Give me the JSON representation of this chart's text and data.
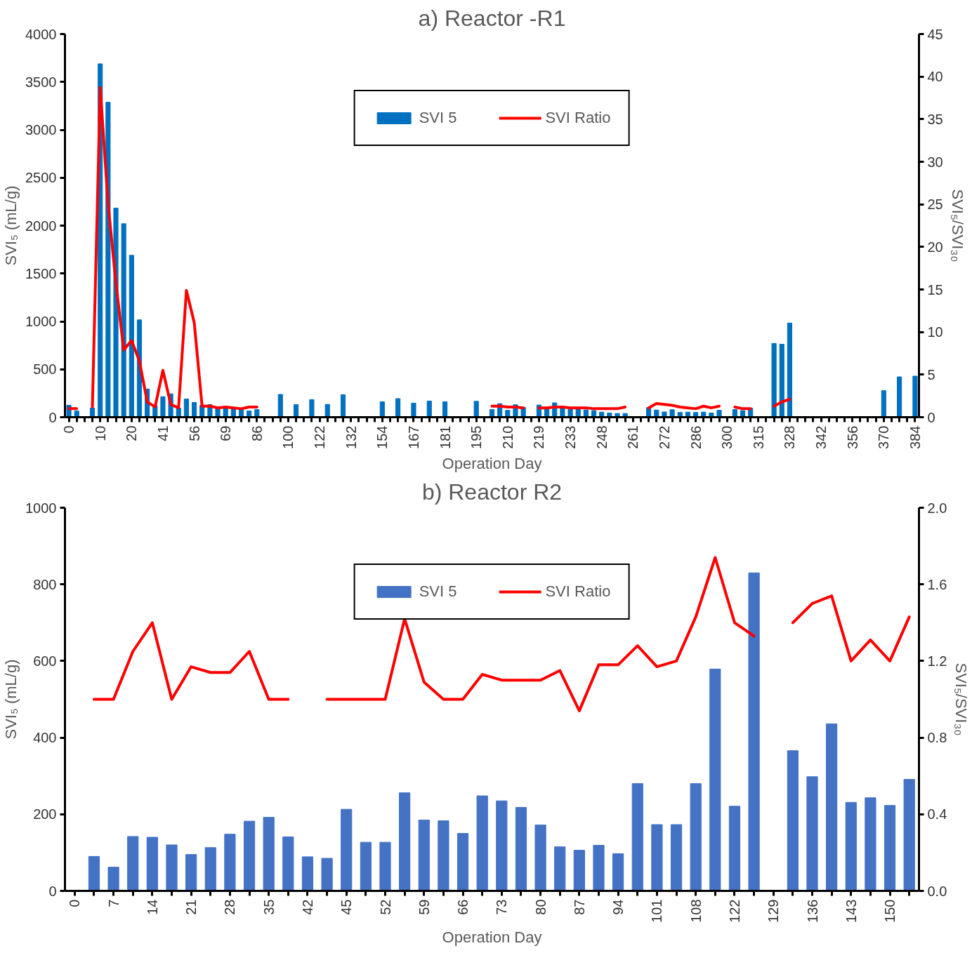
{
  "chart_data": [
    {
      "type": "bar",
      "title": "a) Reactor -R1",
      "xlabel": "Operation Day",
      "ylabel": "SVI₅ (mL/g)",
      "y2label": "SVI₅/SVI₃₀",
      "categories": [
        "0",
        null,
        null,
        null,
        "10",
        null,
        null,
        null,
        "20",
        null,
        null,
        null,
        "41",
        null,
        null,
        null,
        "56",
        null,
        null,
        null,
        "69",
        null,
        null,
        null,
        "86",
        null,
        null,
        null,
        "100",
        null,
        null,
        null,
        "122",
        null,
        null,
        null,
        "132",
        null,
        null,
        null,
        "154",
        null,
        null,
        null,
        "167",
        null,
        null,
        null,
        "181",
        null,
        null,
        null,
        "195",
        null,
        null,
        null,
        "210",
        null,
        null,
        null,
        "219",
        null,
        null,
        null,
        "233",
        null,
        null,
        null,
        "248",
        null,
        null,
        null,
        "261",
        null,
        null,
        null,
        "272",
        null,
        null,
        null,
        "286",
        null,
        null,
        null,
        "300",
        null,
        null,
        null,
        "315",
        null,
        null,
        null,
        "328",
        null,
        null,
        null,
        "342",
        null,
        null,
        null,
        "356",
        null,
        null,
        null,
        "370",
        null,
        null,
        null,
        "384"
      ],
      "series": [
        {
          "name": "SVI 5",
          "color": "#0070c0",
          "values": [
            125,
            65,
            null,
            95,
            3689,
            3288,
            2183,
            2020,
            1690,
            1016,
            294,
            120,
            214,
            244,
            95,
            190,
            154,
            125,
            131,
            101,
            95,
            80,
            80,
            65,
            80,
            null,
            null,
            238,
            null,
            131,
            null,
            184,
            null,
            134,
            null,
            235,
            null,
            null,
            null,
            null,
            161,
            null,
            194,
            null,
            147,
            null,
            169,
            null,
            161,
            null,
            null,
            null,
            166,
            null,
            80,
            141,
            72,
            130,
            102,
            null,
            127,
            91,
            150,
            97,
            83,
            97,
            75,
            69,
            53,
            44,
            39,
            39,
            null,
            null,
            100,
            75,
            55,
            78,
            50,
            53,
            50,
            53,
            44,
            72,
            null,
            80,
            69,
            94,
            null,
            null,
            770,
            762,
            983,
            null,
            null,
            null,
            null,
            null,
            null,
            null,
            null,
            null,
            null,
            null,
            277,
            null,
            421,
            null,
            429
          ]
        },
        {
          "name": "SVI Ratio",
          "type": "line",
          "axis": "y2",
          "color": "#ff0000",
          "values": [
            1.0,
            1.0,
            null,
            1.2,
            38.7,
            25.1,
            15.8,
            7.9,
            9.0,
            6.6,
            1.8,
            1.2,
            5.5,
            1.5,
            1.1,
            14.9,
            11.1,
            1.3,
            1.3,
            1.1,
            1.2,
            1.1,
            1.0,
            1.2,
            1.2,
            null,
            null,
            null,
            null,
            null,
            null,
            null,
            null,
            null,
            null,
            null,
            null,
            null,
            null,
            null,
            null,
            null,
            null,
            null,
            null,
            null,
            null,
            null,
            null,
            null,
            null,
            null,
            null,
            null,
            1.3,
            1.3,
            1.2,
            1.2,
            1.1,
            null,
            1.1,
            1.1,
            1.2,
            1.2,
            1.1,
            1.1,
            1.1,
            1.0,
            1.0,
            1.0,
            1.0,
            1.2,
            null,
            null,
            1.1,
            1.6,
            1.5,
            1.4,
            1.2,
            1.1,
            1.0,
            1.3,
            1.1,
            1.3,
            null,
            1.2,
            1.0,
            1.0,
            null,
            null,
            1.3,
            1.8,
            2.1,
            null,
            null,
            null,
            null,
            null,
            null,
            null,
            null,
            null,
            null,
            null,
            null,
            null,
            null,
            null,
            null
          ]
        }
      ],
      "ylim": [
        0,
        4000
      ],
      "yticks": [
        0,
        500,
        1000,
        1500,
        2000,
        2500,
        3000,
        3500,
        4000
      ],
      "y2lim": [
        0,
        45
      ],
      "y2ticks": [
        0,
        5,
        10,
        15,
        20,
        25,
        30,
        35,
        40,
        45
      ],
      "legend": "top",
      "grid": false
    },
    {
      "type": "bar",
      "title": "b) Reactor R2",
      "xlabel": "Operation Day",
      "ylabel": "SVI₅ (mL/g)",
      "y2label": "SVI₅/SVI₃₀",
      "categories": [
        "0",
        null,
        "7",
        null,
        "14",
        null,
        "21",
        null,
        "28",
        null,
        "35",
        null,
        "42",
        null,
        "45",
        null,
        "52",
        null,
        "59",
        null,
        "66",
        null,
        "73",
        null,
        "80",
        null,
        "87",
        null,
        "94",
        null,
        "101",
        null,
        "108",
        null,
        "122",
        null,
        "129",
        null,
        "136",
        null,
        "143",
        null,
        "150",
        null
      ],
      "series": [
        {
          "name": "SVI 5",
          "color": "#4472c4",
          "values": [
            null,
            90,
            62,
            142,
            140,
            120,
            95,
            113,
            148,
            182,
            192,
            141,
            89,
            85,
            213,
            127,
            127,
            256,
            185,
            183,
            150,
            248,
            235,
            218,
            172,
            115,
            106,
            119,
            97,
            280,
            173,
            173,
            280,
            579,
            221,
            830,
            null,
            366,
            298,
            436,
            231,
            243,
            223,
            291
          ]
        },
        {
          "name": "SVI Ratio",
          "type": "line",
          "axis": "y2",
          "color": "#ff0000",
          "values": [
            null,
            1.0,
            1.0,
            1.25,
            1.4,
            1.0,
            1.17,
            1.14,
            1.14,
            1.25,
            1.0,
            1.0,
            null,
            1.0,
            1.0,
            1.0,
            1.0,
            1.42,
            1.09,
            1.0,
            1.0,
            1.13,
            1.1,
            1.1,
            1.1,
            1.15,
            0.94,
            1.18,
            1.18,
            1.28,
            1.17,
            1.2,
            1.43,
            1.74,
            1.4,
            1.33,
            null,
            1.4,
            1.5,
            1.54,
            1.2,
            1.31,
            1.2,
            1.43
          ]
        }
      ],
      "ylim": [
        0,
        1000
      ],
      "yticks": [
        0,
        200,
        400,
        600,
        800,
        1000
      ],
      "y2lim": [
        0,
        2
      ],
      "y2ticks": [
        {
          "value": 0,
          "label": "0.0"
        },
        {
          "value": 0.4,
          "label": "0.4"
        },
        {
          "value": 0.8,
          "label": "0.8"
        },
        {
          "value": 1.2,
          "label": "1.2"
        },
        {
          "value": 1.6,
          "label": "1.6"
        },
        {
          "value": 2,
          "label": "2.0"
        }
      ],
      "legend": "top",
      "grid": false
    }
  ]
}
